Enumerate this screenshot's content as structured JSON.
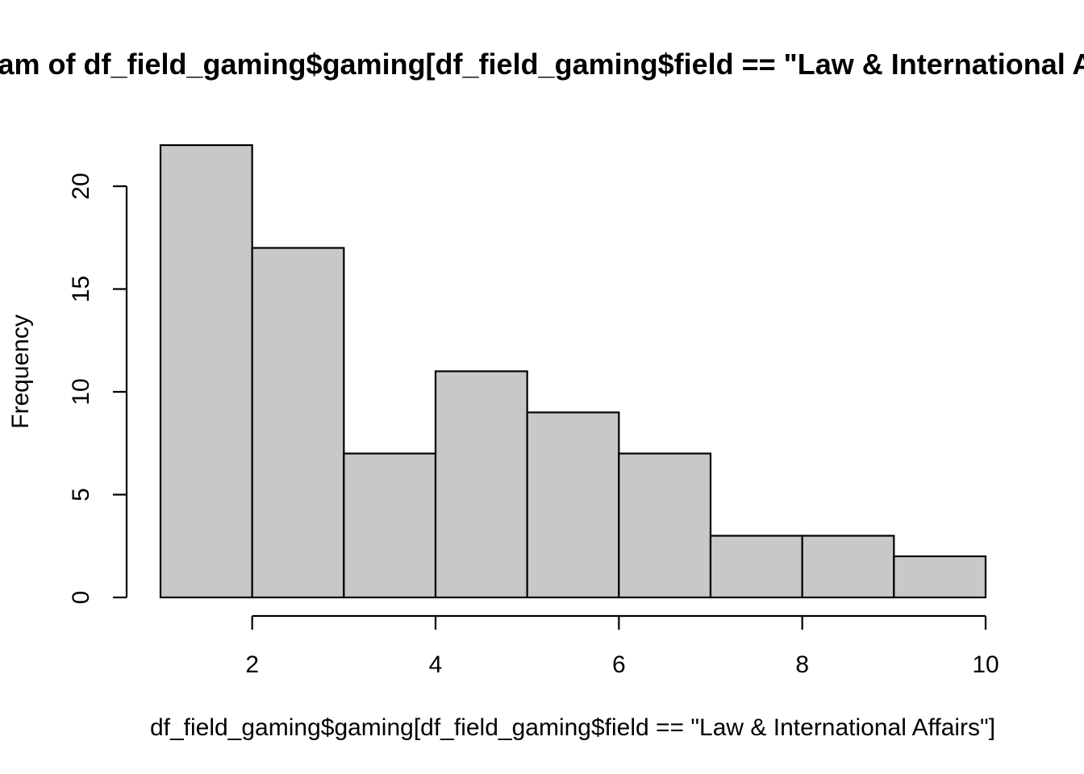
{
  "chart_data": {
    "type": "bar",
    "title": "Histogram of df_field_gaming$gaming[df_field_gaming$field == \"Law & International Affairs\"]",
    "xlabel": "df_field_gaming$gaming[df_field_gaming$field == \"Law & International Affairs\"]",
    "ylabel": "Frequency",
    "bins": [
      [
        1,
        2
      ],
      [
        2,
        3
      ],
      [
        3,
        4
      ],
      [
        4,
        5
      ],
      [
        5,
        6
      ],
      [
        6,
        7
      ],
      [
        7,
        8
      ],
      [
        8,
        9
      ],
      [
        9,
        10
      ]
    ],
    "values": [
      22,
      17,
      7,
      11,
      9,
      7,
      3,
      3,
      2
    ],
    "xlim": [
      1,
      10
    ],
    "ylim": [
      0,
      22
    ],
    "xticks": [
      2,
      4,
      6,
      8,
      10
    ],
    "yticks": [
      0,
      5,
      10,
      15,
      20
    ],
    "grid": false,
    "legend": "none",
    "colors": {
      "bar_fill": "#c8c8c8",
      "bar_stroke": "#000000",
      "background": "#ffffff"
    }
  }
}
